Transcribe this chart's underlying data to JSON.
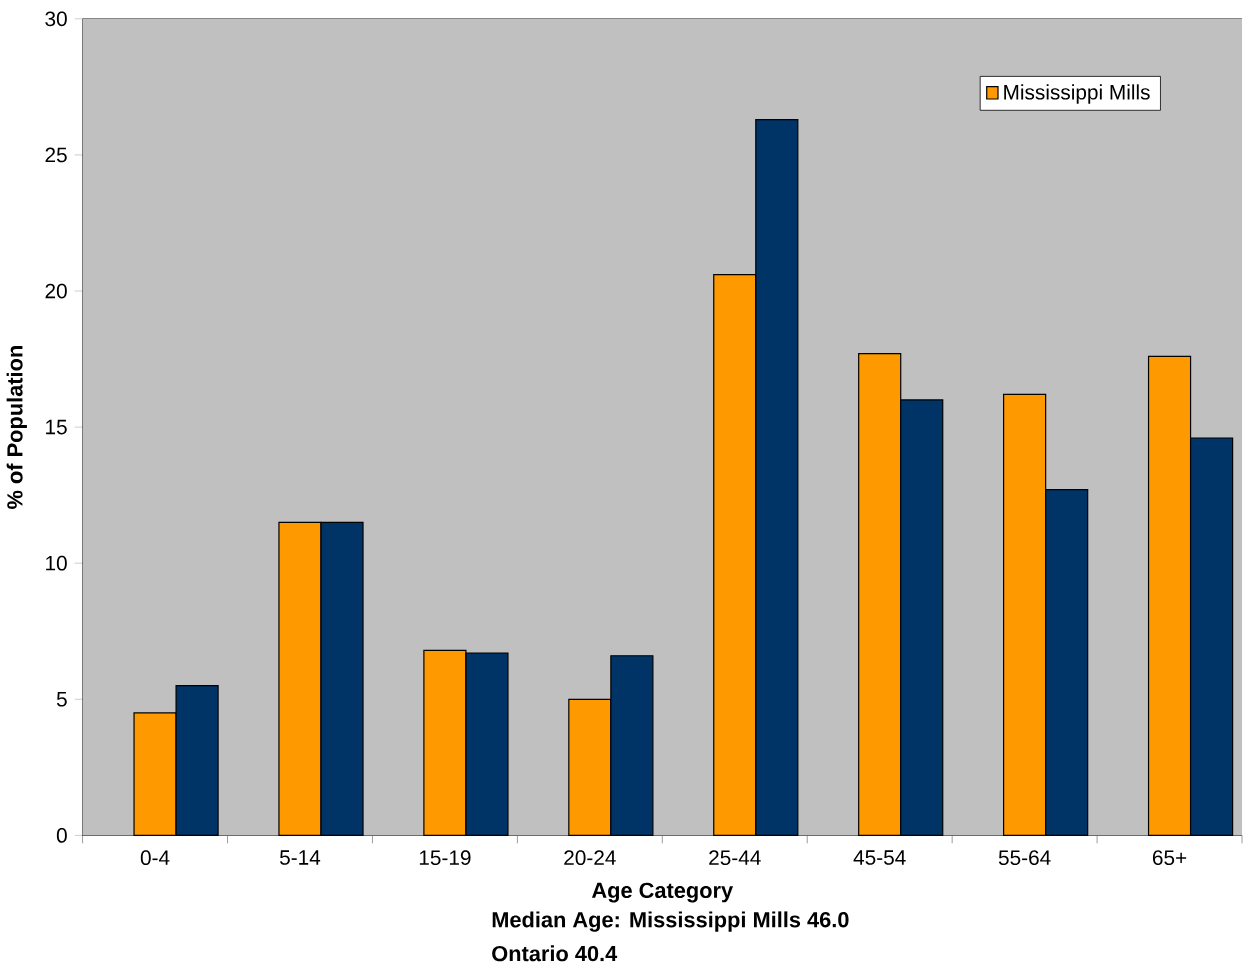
{
  "chart_data": {
    "type": "bar",
    "xlabel": "Age Category",
    "ylabel": "% of Population",
    "categories": [
      "0-4",
      "5-14",
      "15-19",
      "20-24",
      "25-44",
      "45-54",
      "55-64",
      "65+"
    ],
    "series": [
      {
        "name": "Mississippi Mills",
        "color": "#ff9900",
        "values": [
          4.5,
          11.5,
          6.8,
          5.0,
          20.6,
          17.7,
          16.2,
          17.6
        ]
      },
      {
        "color": "#003366",
        "values": [
          5.5,
          11.5,
          6.7,
          6.6,
          26.3,
          16.0,
          12.7,
          14.6
        ]
      }
    ],
    "ylim": [
      0,
      30
    ],
    "yticks": [
      0,
      5,
      10,
      15,
      20,
      25,
      30
    ],
    "grid": "y",
    "legend": "top right",
    "annotations": [
      "Median Age: Mississippi Mills 46.0",
      "Ontario 40.4"
    ]
  }
}
